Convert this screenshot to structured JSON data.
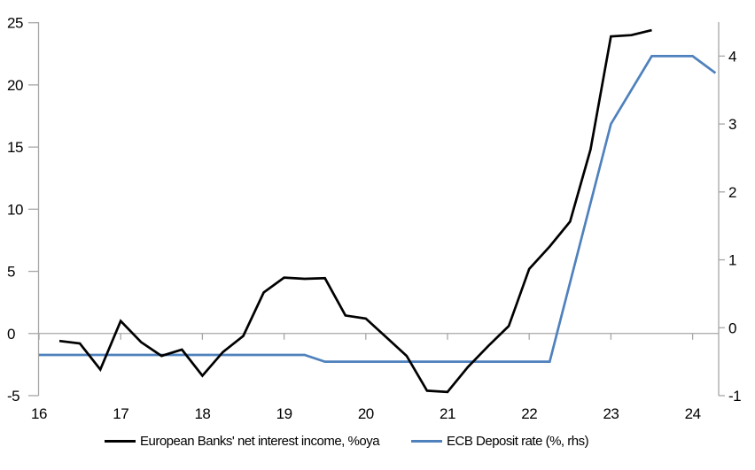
{
  "chart_data": {
    "type": "line",
    "title": "",
    "background": "#ffffff",
    "axis_color": "#a6a6a6",
    "text_color": "#000000",
    "x_axis": {
      "ticks": [
        16,
        17,
        18,
        19,
        20,
        21,
        22,
        23,
        24
      ],
      "tick_labels": [
        "16",
        "17",
        "18",
        "19",
        "20",
        "21",
        "22",
        "23",
        "24"
      ],
      "min": 16,
      "max": 24.32,
      "ticks_on_zero_line": true
    },
    "y_axis_left": {
      "ticks": [
        -5,
        0,
        5,
        10,
        15,
        20,
        25
      ],
      "tick_labels": [
        "-5",
        "0",
        "5",
        "10",
        "15",
        "20",
        "25"
      ],
      "min": -5,
      "max": 25.05,
      "zero_gridline": true
    },
    "y_axis_right": {
      "ticks": [
        -1,
        0,
        1,
        2,
        3,
        4
      ],
      "tick_labels": [
        "-1",
        "0",
        "1",
        "2",
        "3",
        "4"
      ],
      "min": -1,
      "max": 4.5
    },
    "grid": "off",
    "legend_position": "bottom",
    "series": [
      {
        "name": "European Banks' net interest income, %oya",
        "axis": "left",
        "color": "#000000",
        "line_width": 2.7,
        "x": [
          16.25,
          16.5,
          16.75,
          17.0,
          17.25,
          17.5,
          17.75,
          18.0,
          18.25,
          18.5,
          18.75,
          19.0,
          19.25,
          19.5,
          19.75,
          20.0,
          20.25,
          20.5,
          20.75,
          21.0,
          21.25,
          21.5,
          21.75,
          22.0,
          22.25,
          22.5,
          22.75,
          23.0,
          23.25,
          23.5
        ],
        "y": [
          -0.6,
          -0.8,
          -2.9,
          1.0,
          -0.7,
          -1.8,
          -1.3,
          -3.4,
          -1.5,
          -0.2,
          3.3,
          4.5,
          4.4,
          4.45,
          1.45,
          1.2,
          -0.3,
          -1.8,
          -4.6,
          -4.7,
          -2.7,
          -1.0,
          0.6,
          5.2,
          7.0,
          9.0,
          14.8,
          23.9,
          24.0,
          24.4
        ]
      },
      {
        "name": "ECB Deposit rate (%, rhs)",
        "axis": "right",
        "color": "#4f81bd",
        "line_width": 2.7,
        "x": [
          16.0,
          19.25,
          19.5,
          22.25,
          23.0,
          23.5,
          24.0,
          24.28
        ],
        "y": [
          -0.4,
          -0.4,
          -0.5,
          -0.5,
          3.0,
          4.0,
          4.0,
          3.75
        ]
      }
    ]
  },
  "legend": {
    "nii_label": "European Banks' net interest income, %oya",
    "ecb_label": "ECB Deposit rate (%, rhs)"
  }
}
